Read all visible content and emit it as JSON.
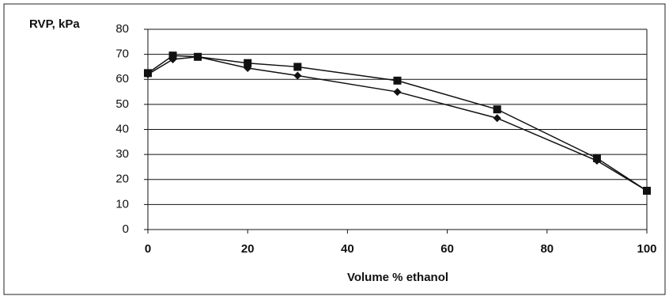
{
  "chart_data": {
    "type": "line",
    "y_label": "RVP, kPa",
    "x_label": "Volume % ethanol",
    "series": [
      {
        "color": "#111111",
        "marker": "square",
        "x": [
          0,
          5,
          10,
          20,
          30,
          50,
          70,
          90,
          100
        ],
        "values": [
          62.5,
          69.5,
          69,
          66.5,
          65,
          59.5,
          48,
          28.5,
          15.5
        ]
      },
      {
        "color": "#111111",
        "marker": "diamond",
        "x": [
          0,
          5,
          10,
          20,
          30,
          50,
          70,
          90,
          100
        ],
        "values": [
          62,
          68,
          69,
          64.5,
          61.5,
          55,
          44.5,
          27.5,
          15.5
        ]
      }
    ],
    "xlim": [
      0,
      100
    ],
    "xticks": [
      0,
      20,
      40,
      60,
      80,
      100
    ],
    "ylim": [
      0,
      80
    ],
    "yticks": [
      0,
      10,
      20,
      30,
      40,
      50,
      60,
      70,
      80
    ],
    "grid": true
  }
}
